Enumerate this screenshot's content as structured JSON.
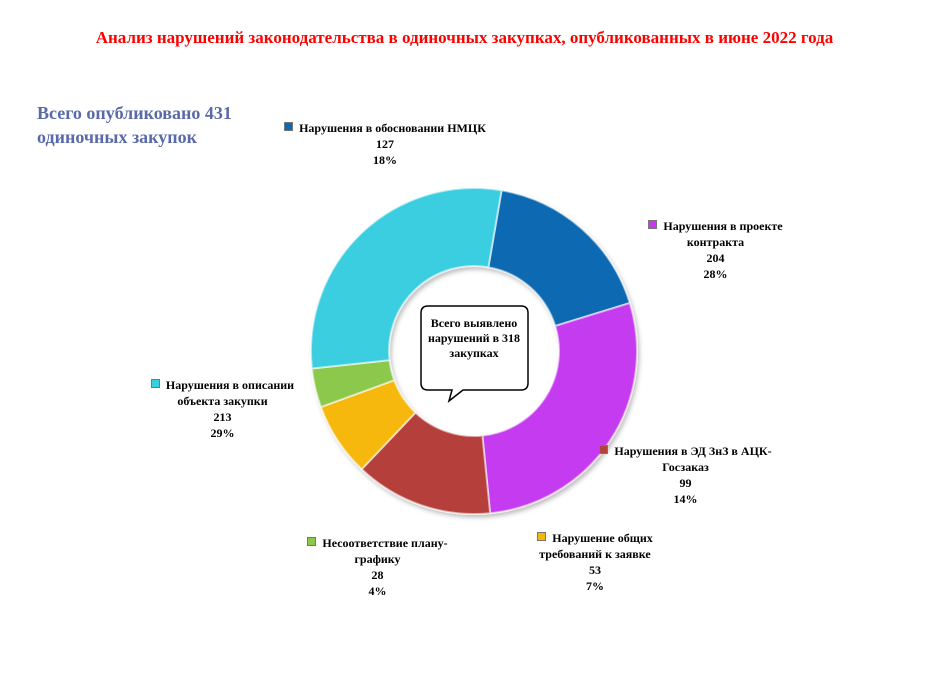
{
  "title": "Анализ нарушений законодательства в одиночных закупках, опубликованных в июне 2022 года",
  "summary": "Всего опубликовано 431 одиночных закупок",
  "callout": "Всего выявлено нарушений в 318 закупках",
  "chart_data": {
    "type": "pie",
    "donut": true,
    "categories": [
      "Нарушения в обосновании НМЦК",
      "Нарушения в проекте контракта",
      "Нарушения в ЭД ЗнЗ в АЦК-Госзаказ",
      "Нарушение общих требований к заявке",
      "Несоответствие плану-графику",
      "Нарушения в описании объекта закупки"
    ],
    "values": [
      127,
      204,
      99,
      53,
      28,
      213
    ],
    "percent_labels": [
      "18%",
      "28%",
      "14%",
      "7%",
      "4%",
      "29%"
    ],
    "colors": [
      "#0a6ab2",
      "#c53aef",
      "#b5413b",
      "#f6b808",
      "#8cc84b",
      "#3bcde0"
    ]
  },
  "labels": [
    {
      "name": "Нарушения  в обосновании НМЦК",
      "value": "127",
      "pct": "18%"
    },
    {
      "name": "Нарушения  в проекте контракта",
      "value": "204",
      "pct": "28%"
    },
    {
      "name": "Нарушения  в ЭД ЗнЗ в АЦК-Госзаказ",
      "value": "99",
      "pct": "14%"
    },
    {
      "name": "Нарушение  общих требований  к заявке",
      "value": "53",
      "pct": "7%"
    },
    {
      "name": "Несоответствие  плану-графику",
      "value": "28",
      "pct": "4%"
    },
    {
      "name": "Нарушения  в описании объекта закупки",
      "value": "213",
      "pct": "29%"
    }
  ]
}
